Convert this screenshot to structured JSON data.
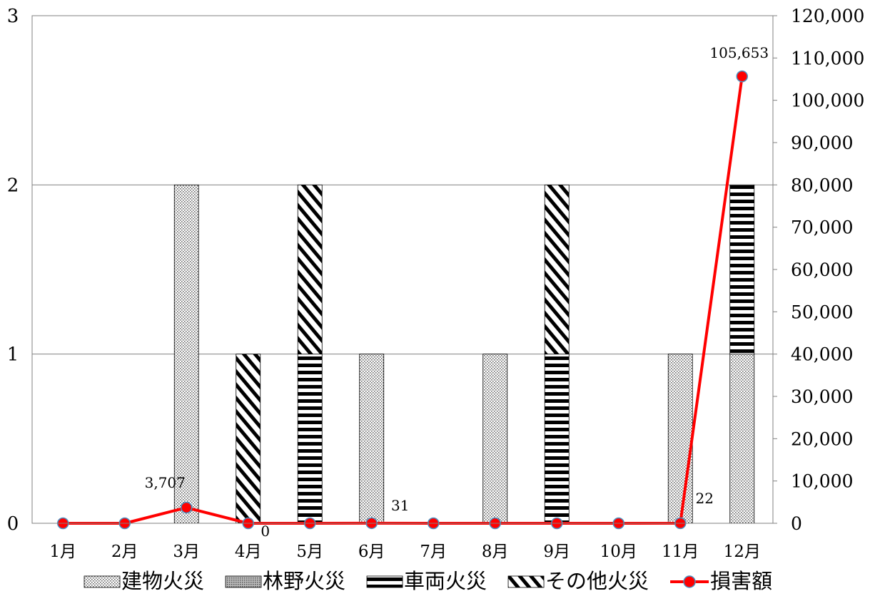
{
  "chart_data": {
    "type": "bar",
    "categories": [
      "1月",
      "2月",
      "3月",
      "4月",
      "5月",
      "6月",
      "7月",
      "8月",
      "9月",
      "10月",
      "11月",
      "12月"
    ],
    "series": [
      {
        "name": "建物火災",
        "axis": "left",
        "values": [
          0,
          0,
          2,
          0,
          0,
          1,
          0,
          1,
          0,
          0,
          1,
          1
        ]
      },
      {
        "name": "林野火災",
        "axis": "left",
        "values": [
          0,
          0,
          0,
          0,
          0,
          0,
          0,
          0,
          0,
          0,
          0,
          0
        ]
      },
      {
        "name": "車両火災",
        "axis": "left",
        "values": [
          0,
          0,
          0,
          0,
          1,
          0,
          0,
          0,
          1,
          0,
          0,
          1
        ]
      },
      {
        "name": "その他火災",
        "axis": "left",
        "values": [
          0,
          0,
          0,
          1,
          1,
          0,
          0,
          0,
          1,
          0,
          0,
          0
        ]
      },
      {
        "name": "損害額",
        "axis": "right",
        "kind": "line",
        "color": "#ff0000",
        "values": [
          0,
          0,
          3707,
          0,
          0,
          31,
          0,
          0,
          0,
          0,
          22,
          105653
        ]
      }
    ],
    "data_labels": [
      {
        "category": "3月",
        "text": "3,707"
      },
      {
        "category": "4月",
        "text": "0"
      },
      {
        "category": "6月",
        "text": "31"
      },
      {
        "category": "11月",
        "text": "22"
      },
      {
        "category": "12月",
        "text": "105,653"
      }
    ],
    "left_axis": {
      "min": 0,
      "max": 3,
      "ticks": [
        "0",
        "1",
        "2",
        "3"
      ]
    },
    "right_axis": {
      "min": 0,
      "max": 120000,
      "ticks": [
        "0",
        "10,000",
        "20,000",
        "30,000",
        "40,000",
        "50,000",
        "60,000",
        "70,000",
        "80,000",
        "90,000",
        "100,000",
        "110,000",
        "120,000"
      ]
    },
    "grid": "horizontal",
    "legend_position": "bottom",
    "stacked": true
  }
}
